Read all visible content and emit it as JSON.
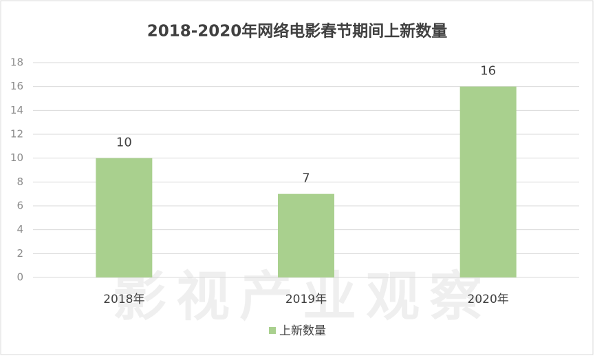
{
  "chart_data": {
    "type": "bar",
    "title": "2018-2020年网络电影春节期间上新数量",
    "watermark": "影视产业观察",
    "categories": [
      "2018年",
      "2019年",
      "2020年"
    ],
    "series": [
      {
        "name": "上新数量",
        "color": "#a9d08e",
        "values": [
          10,
          7,
          16
        ]
      }
    ],
    "ylim": [
      0,
      18
    ],
    "yticks": [
      0,
      2,
      4,
      6,
      8,
      10,
      12,
      14,
      16,
      18
    ],
    "grid": true,
    "legend": "bottom"
  }
}
